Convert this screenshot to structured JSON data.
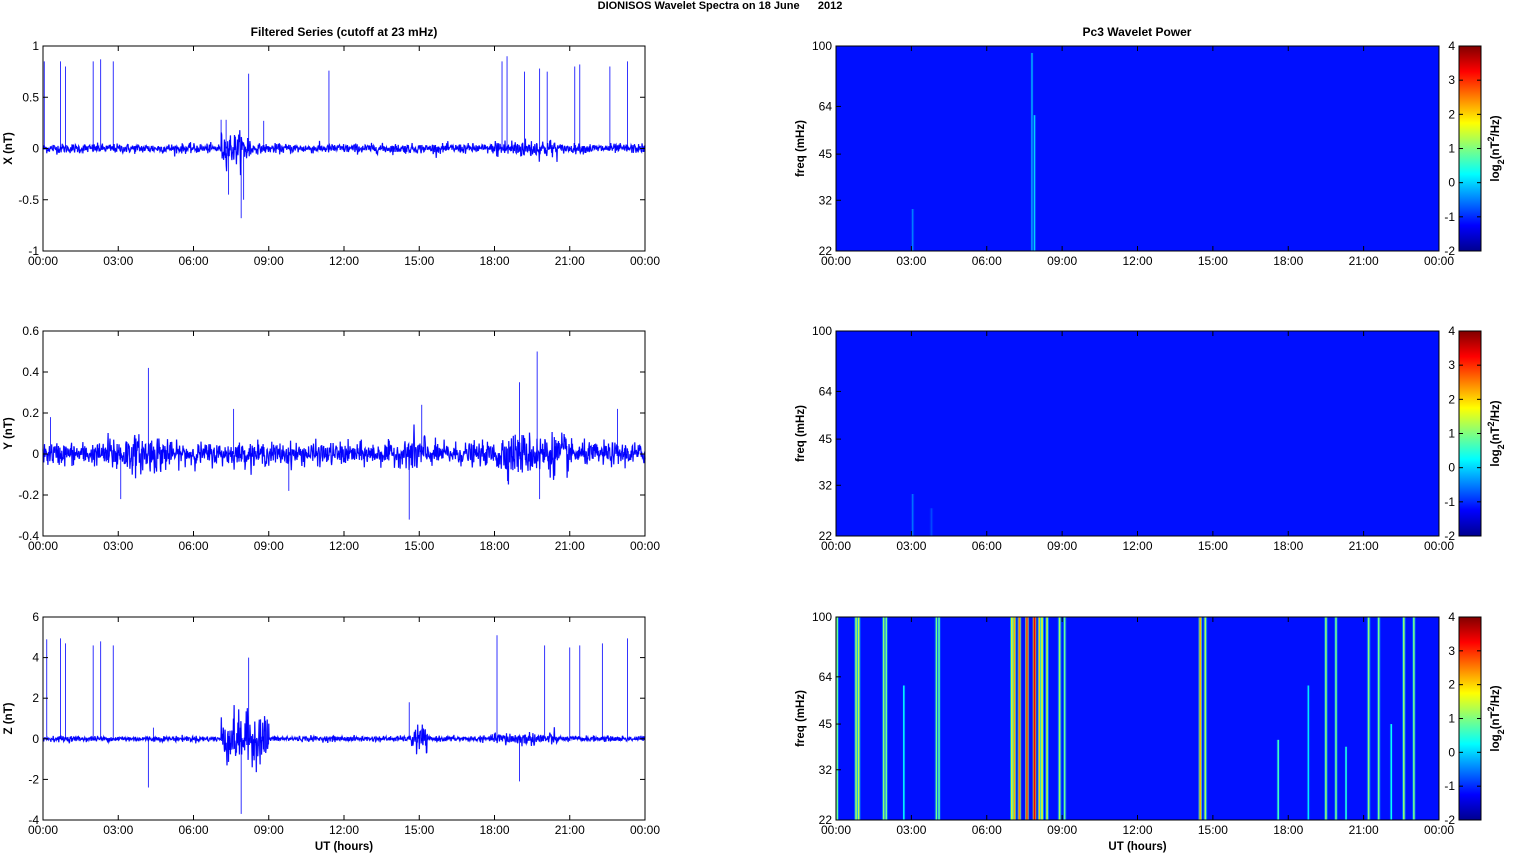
{
  "figure": {
    "title": "DIONISOS Wavelet Spectra on 18 June      2012",
    "left_title": "Filtered Series (cutoff at 23 mHz)",
    "right_title": "Pc3 Wavelet Power"
  },
  "chart_data": [
    {
      "type": "line",
      "ylabel": "X (nT)",
      "xlabel": "",
      "x_ticks": [
        "00:00",
        "03:00",
        "06:00",
        "09:00",
        "12:00",
        "15:00",
        "18:00",
        "21:00",
        "00:00"
      ],
      "xlim": [
        0,
        24
      ],
      "ylim": [
        -1,
        1
      ],
      "y_ticks": [
        "1",
        "0.5",
        "0",
        "-0.5",
        "-1"
      ],
      "y_tick_values": [
        1,
        0.5,
        0,
        -0.5,
        -1
      ],
      "series_color": "#0000ff",
      "noise_amplitude": 0.05,
      "bursts": [
        [
          7.1,
          8.3,
          0.12
        ],
        [
          18,
          20.5,
          0.05
        ]
      ],
      "spikes": [
        [
          0.05,
          0.85
        ],
        [
          0.7,
          0.85
        ],
        [
          0.9,
          0.8
        ],
        [
          2.0,
          0.85
        ],
        [
          2.3,
          0.87
        ],
        [
          2.8,
          0.85
        ],
        [
          7.1,
          0.28
        ],
        [
          7.3,
          0.28
        ],
        [
          7.9,
          -0.68
        ],
        [
          8.2,
          0.73
        ],
        [
          8.8,
          0.27
        ],
        [
          11.4,
          0.76
        ],
        [
          18.3,
          0.85
        ],
        [
          18.5,
          0.9
        ],
        [
          19.2,
          0.75
        ],
        [
          19.8,
          0.78
        ],
        [
          20.1,
          0.75
        ],
        [
          21.2,
          0.8
        ],
        [
          21.4,
          0.82
        ],
        [
          22.6,
          0.8
        ],
        [
          23.3,
          0.85
        ],
        [
          7.4,
          -0.45
        ],
        [
          8.0,
          -0.5
        ]
      ]
    },
    {
      "type": "line",
      "ylabel": "Y (nT)",
      "xlabel": "",
      "x_ticks": [
        "00:00",
        "03:00",
        "06:00",
        "09:00",
        "12:00",
        "15:00",
        "18:00",
        "21:00",
        "00:00"
      ],
      "xlim": [
        0,
        24
      ],
      "ylim": [
        -0.4,
        0.6
      ],
      "y_ticks": [
        "0.6",
        "0.4",
        "0.2",
        "0",
        "-0.2",
        "-0.4"
      ],
      "y_tick_values": [
        0.6,
        0.4,
        0.2,
        0,
        -0.2,
        -0.4
      ],
      "series_color": "#0000ff",
      "noise_amplitude": 0.06,
      "bursts": [
        [
          2.5,
          5,
          0.04
        ],
        [
          14.5,
          15.3,
          0.05
        ],
        [
          18,
          21,
          0.05
        ]
      ],
      "spikes": [
        [
          0.3,
          0.18
        ],
        [
          3.1,
          -0.22
        ],
        [
          4.2,
          0.42
        ],
        [
          7.6,
          0.22
        ],
        [
          9.8,
          -0.18
        ],
        [
          14.6,
          -0.32
        ],
        [
          15.1,
          0.24
        ],
        [
          19.0,
          0.35
        ],
        [
          19.7,
          0.5
        ],
        [
          19.8,
          -0.22
        ],
        [
          22.9,
          0.22
        ]
      ]
    },
    {
      "type": "line",
      "ylabel": "Z (nT)",
      "xlabel": "UT (hours)",
      "x_ticks": [
        "00:00",
        "03:00",
        "06:00",
        "09:00",
        "12:00",
        "15:00",
        "18:00",
        "21:00",
        "00:00"
      ],
      "xlim": [
        0,
        24
      ],
      "ylim": [
        -4,
        6
      ],
      "y_ticks": [
        "6",
        "4",
        "2",
        "0",
        "-2",
        "-4"
      ],
      "y_tick_values": [
        6,
        4,
        2,
        0,
        -2,
        -4
      ],
      "series_color": "#0000ff",
      "noise_amplitude": 0.15,
      "bursts": [
        [
          7.1,
          9.0,
          1.2
        ],
        [
          14.7,
          15.3,
          0.6
        ],
        [
          18,
          20.5,
          0.2
        ]
      ],
      "spikes": [
        [
          0.15,
          4.9
        ],
        [
          0.7,
          4.95
        ],
        [
          0.9,
          4.7
        ],
        [
          2.0,
          4.6
        ],
        [
          2.3,
          4.8
        ],
        [
          2.8,
          4.6
        ],
        [
          4.2,
          -2.4
        ],
        [
          4.4,
          0.55
        ],
        [
          7.9,
          -3.7
        ],
        [
          8.2,
          4.0
        ],
        [
          14.6,
          1.8
        ],
        [
          18.1,
          5.1
        ],
        [
          19.0,
          -2.1
        ],
        [
          20.0,
          4.6
        ],
        [
          21.0,
          4.5
        ],
        [
          21.4,
          4.6
        ],
        [
          22.3,
          4.7
        ],
        [
          23.3,
          4.95
        ]
      ]
    },
    {
      "type": "heatmap",
      "ylabel": "freq (mHz)",
      "xlabel": "",
      "x_ticks": [
        "00:00",
        "03:00",
        "06:00",
        "09:00",
        "12:00",
        "15:00",
        "18:00",
        "21:00",
        "00:00"
      ],
      "xlim": [
        0,
        24
      ],
      "y_ticks": [
        "100",
        "64",
        "45",
        "32",
        "22"
      ],
      "y_tick_values": [
        100,
        64,
        45,
        32,
        22
      ],
      "ylim": [
        22,
        100
      ],
      "y_scale": "log",
      "colorbar_label": "log2(nT^2/Hz)",
      "colorbar_ticks": [
        "4",
        "3",
        "2",
        "1",
        "0",
        "-1",
        "-2"
      ],
      "clim": [
        -2,
        4
      ],
      "background_level": -2,
      "streaks": [
        [
          3.05,
          22,
          30,
          -1.2
        ],
        [
          7.8,
          22,
          95,
          -0.9
        ],
        [
          7.9,
          22,
          60,
          -0.6
        ]
      ]
    },
    {
      "type": "heatmap",
      "ylabel": "freq (mHz)",
      "xlabel": "",
      "x_ticks": [
        "00:00",
        "03:00",
        "06:00",
        "09:00",
        "12:00",
        "15:00",
        "18:00",
        "21:00",
        "00:00"
      ],
      "xlim": [
        0,
        24
      ],
      "y_ticks": [
        "100",
        "64",
        "45",
        "32",
        "22"
      ],
      "y_tick_values": [
        100,
        64,
        45,
        32,
        22
      ],
      "ylim": [
        22,
        100
      ],
      "y_scale": "log",
      "colorbar_label": "log2(nT^2/Hz)",
      "colorbar_ticks": [
        "4",
        "3",
        "2",
        "1",
        "0",
        "-1",
        "-2"
      ],
      "clim": [
        -2,
        4
      ],
      "background_level": -2,
      "streaks": [
        [
          3.05,
          22,
          30,
          -1.3
        ],
        [
          3.8,
          22,
          27,
          -1.6
        ]
      ]
    },
    {
      "type": "heatmap",
      "ylabel": "freq (mHz)",
      "xlabel": "UT (hours)",
      "x_ticks": [
        "00:00",
        "03:00",
        "06:00",
        "09:00",
        "12:00",
        "15:00",
        "18:00",
        "21:00",
        "00:00"
      ],
      "xlim": [
        0,
        24
      ],
      "y_ticks": [
        "100",
        "64",
        "45",
        "32",
        "22"
      ],
      "y_tick_values": [
        100,
        64,
        45,
        32,
        22
      ],
      "ylim": [
        22,
        100
      ],
      "y_scale": "log",
      "colorbar_label": "log2(nT^2/Hz)",
      "colorbar_ticks": [
        "4",
        "3",
        "2",
        "1",
        "0",
        "-1",
        "-2"
      ],
      "clim": [
        -2,
        4
      ],
      "background_level": -2,
      "streaks": [
        [
          0.05,
          22,
          100,
          0.5
        ],
        [
          0.8,
          22,
          100,
          1.0
        ],
        [
          0.9,
          22,
          100,
          1.2
        ],
        [
          1.9,
          22,
          100,
          0.8
        ],
        [
          2.0,
          22,
          100,
          0.6
        ],
        [
          2.7,
          22,
          60,
          -0.3
        ],
        [
          4.0,
          22,
          100,
          0.6
        ],
        [
          4.1,
          22,
          100,
          0.4
        ],
        [
          7.0,
          22,
          100,
          1.5
        ],
        [
          7.1,
          22,
          100,
          2.2
        ],
        [
          7.3,
          22,
          100,
          2.5
        ],
        [
          7.6,
          22,
          100,
          3.0
        ],
        [
          7.9,
          22,
          100,
          3.6
        ],
        [
          8.1,
          22,
          100,
          2.0
        ],
        [
          8.2,
          22,
          100,
          1.5
        ],
        [
          8.4,
          22,
          100,
          1.2
        ],
        [
          8.9,
          22,
          100,
          1.0
        ],
        [
          9.1,
          22,
          100,
          0.5
        ],
        [
          14.5,
          22,
          100,
          2.2
        ],
        [
          14.7,
          22,
          100,
          1.0
        ],
        [
          17.6,
          22,
          40,
          0.2
        ],
        [
          18.8,
          22,
          60,
          -0.4
        ],
        [
          19.5,
          22,
          100,
          0.8
        ],
        [
          19.9,
          22,
          100,
          0.6
        ],
        [
          20.3,
          22,
          38,
          0.0
        ],
        [
          21.2,
          22,
          100,
          0.8
        ],
        [
          21.6,
          22,
          100,
          0.6
        ],
        [
          22.1,
          22,
          45,
          -0.2
        ],
        [
          22.6,
          22,
          100,
          0.8
        ],
        [
          23.0,
          22,
          100,
          0.6
        ]
      ]
    }
  ]
}
